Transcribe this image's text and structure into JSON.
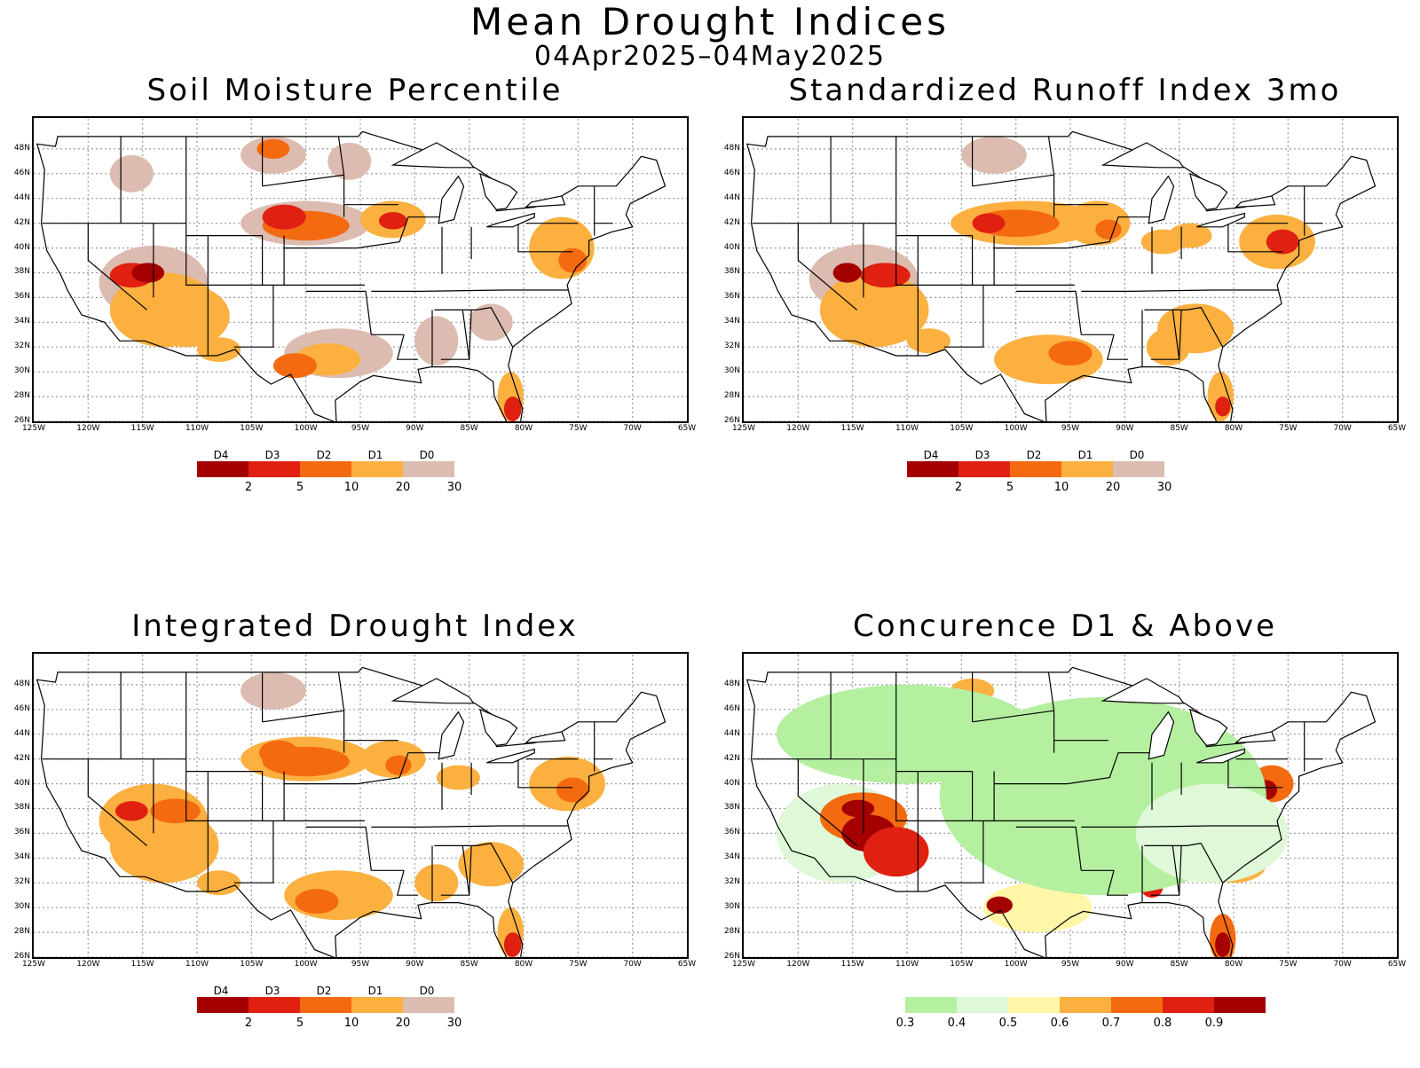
{
  "header": {
    "title": "Mean Drought Indices",
    "period": "04Apr2025–04May2025"
  },
  "lat_labels": [
    "48N",
    "46N",
    "44N",
    "42N",
    "40N",
    "38N",
    "36N",
    "34N",
    "32N",
    "30N",
    "28N",
    "26N"
  ],
  "lon_labels": [
    "125W",
    "120W",
    "115W",
    "110W",
    "105W",
    "100W",
    "95W",
    "90W",
    "85W",
    "80W",
    "75W",
    "70W",
    "65W"
  ],
  "drought_legend": {
    "categories": [
      "D4",
      "D3",
      "D2",
      "D1",
      "D0"
    ],
    "thresholds": [
      "2",
      "5",
      "10",
      "20",
      "30"
    ],
    "colors": [
      "#a50000",
      "#e02010",
      "#f46a10",
      "#fbb040",
      "#dcbcb0"
    ]
  },
  "concurrence_legend": {
    "thresholds": [
      "0.3",
      "0.4",
      "0.5",
      "0.6",
      "0.7",
      "0.8",
      "0.9"
    ],
    "colors": [
      "#b4f0a0",
      "#dff8d8",
      "#fff6a8",
      "#fbb040",
      "#f46a10",
      "#e02010",
      "#a50000"
    ]
  },
  "panels": [
    {
      "title": "Soil Moisture Percentile",
      "legend": "drought"
    },
    {
      "title": "Standardized Runoff Index 3mo",
      "legend": "drought"
    },
    {
      "title": "Integrated Drought Index",
      "legend": "drought"
    },
    {
      "title": "Concurence D1 & Above",
      "legend": "concurrence"
    }
  ]
}
